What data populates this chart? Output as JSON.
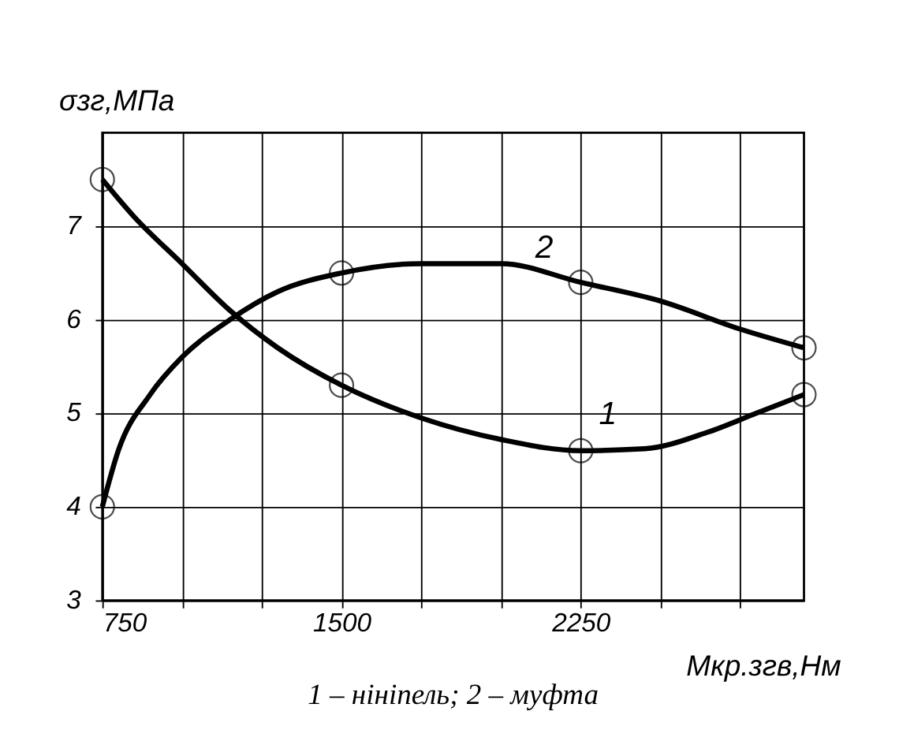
{
  "chart_data": {
    "type": "line",
    "xlabel": "Mкр.згв,Нм",
    "ylabel": "σзг,МПа",
    "xlim": [
      750,
      2950
    ],
    "ylim": [
      3,
      8
    ],
    "xticks": [
      750,
      {
        "value": 1000,
        "label": null
      },
      {
        "value": 1250,
        "label": null
      },
      1500,
      {
        "value": 1750,
        "label": null
      },
      {
        "value": 2000,
        "label": null
      },
      2250,
      {
        "value": 2500,
        "label": null
      },
      {
        "value": 2750,
        "label": null
      }
    ],
    "yticks": [
      3,
      4,
      5,
      6,
      7
    ],
    "grid": true,
    "line_style": "solid",
    "marker": "none",
    "series": [
      {
        "name": "1",
        "color": "#000000",
        "x": [
          750,
          850,
          1000,
          1150,
          1300,
          1500,
          1750,
          2000,
          2250,
          2450,
          2650,
          2800,
          2950
        ],
        "values": [
          7.5,
          7.1,
          6.6,
          6.1,
          5.7,
          5.3,
          4.95,
          4.72,
          4.6,
          4.62,
          4.8,
          5.0,
          5.2
        ]
      },
      {
        "name": "2",
        "color": "#000000",
        "x": [
          750,
          800,
          900,
          1000,
          1150,
          1300,
          1500,
          1750,
          2000,
          2250,
          2500,
          2750,
          2950
        ],
        "values": [
          4.0,
          4.6,
          5.2,
          5.6,
          6.0,
          6.3,
          6.5,
          6.6,
          6.6,
          6.4,
          6.2,
          5.9,
          5.7
        ]
      },
      {
        "type": "scatter",
        "marker": "circle",
        "color": "#000000",
        "x": [
          750,
          1500,
          2250,
          2950
        ],
        "values": [
          7.5,
          5.3,
          4.6,
          5.2
        ]
      },
      {
        "type": "scatter",
        "marker": "circle",
        "color": "#000000",
        "x": [
          750,
          1500,
          2250,
          2950
        ],
        "values": [
          4.0,
          6.5,
          6.4,
          5.7
        ]
      }
    ],
    "annotations": [
      "1 – нініпель;  2 – муфта"
    ]
  }
}
